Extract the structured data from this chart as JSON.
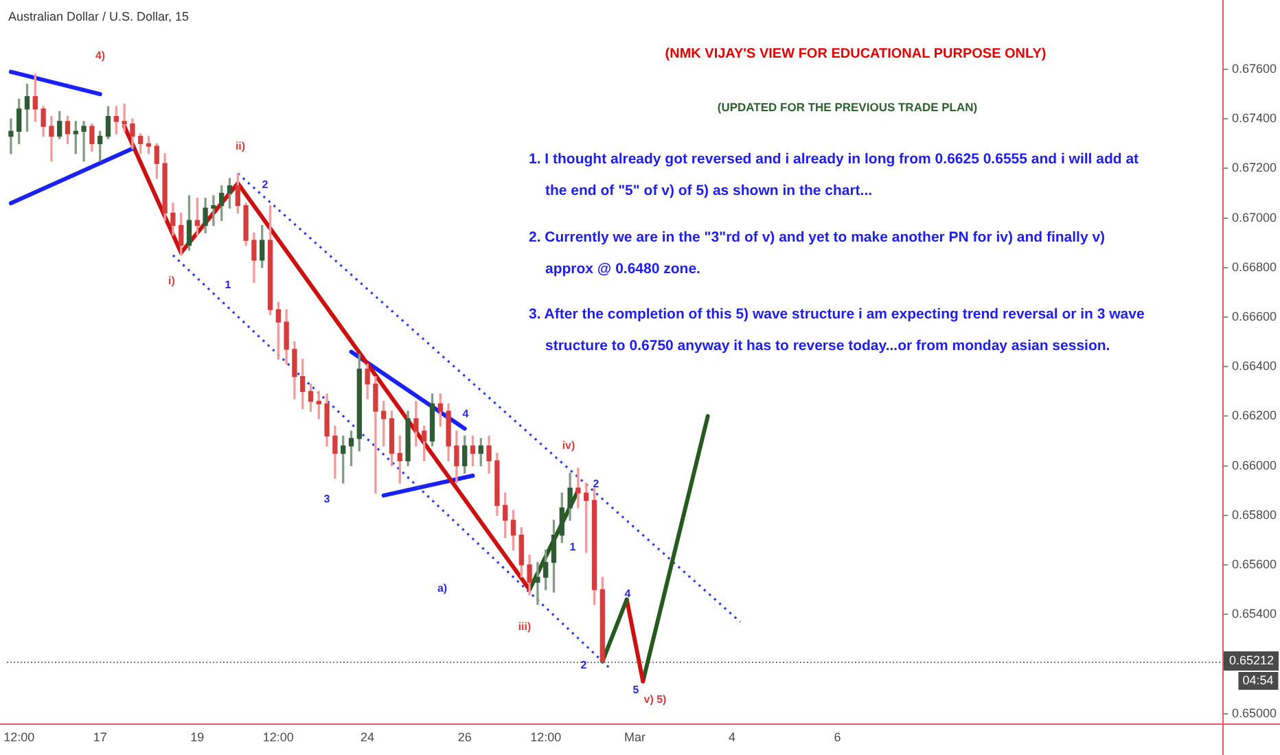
{
  "chart_data": {
    "type": "candlestick",
    "title": "Australian Dollar / U.S. Dollar, 15",
    "categories": [
      null,
      "12:00",
      null,
      null,
      null,
      null,
      null,
      null,
      null,
      null,
      null,
      "17",
      null,
      null,
      null,
      null,
      null,
      null,
      null,
      null,
      null,
      null,
      null,
      "19",
      null,
      null,
      null,
      null,
      null,
      null,
      null,
      null,
      null,
      "12:00",
      null,
      null,
      null,
      null,
      null,
      null,
      null,
      null,
      null,
      null,
      "24",
      null,
      null,
      null,
      null,
      null,
      null,
      null,
      null,
      null,
      null,
      null,
      "26",
      null,
      null,
      null,
      null,
      null,
      null,
      null,
      null,
      null,
      "12:00",
      null,
      null,
      null,
      null,
      null,
      null,
      null,
      null,
      null,
      null,
      "Mar",
      null,
      null,
      null,
      null,
      null,
      null,
      null,
      null,
      null,
      null,
      null,
      "4",
      null,
      null,
      null,
      null,
      null,
      null,
      null,
      null,
      null,
      null,
      null,
      null,
      "6",
      null,
      null,
      null,
      null,
      null,
      null,
      null,
      null,
      null,
      null,
      null,
      null,
      null,
      null,
      null,
      null,
      null,
      null,
      null,
      null,
      null,
      null,
      null,
      null,
      null,
      null,
      null,
      null,
      null,
      null,
      null,
      null,
      null,
      null,
      null,
      null,
      null,
      null,
      null,
      null,
      null,
      null,
      null,
      null,
      null,
      null,
      null
    ],
    "ohlc": [
      [
        0.6733,
        0.674,
        0.6726,
        0.6735
      ],
      [
        0.6735,
        0.6748,
        0.673,
        0.6744
      ],
      [
        0.6744,
        0.6754,
        0.6735,
        0.6749
      ],
      [
        0.6749,
        0.6758,
        0.6739,
        0.6744
      ],
      [
        0.6744,
        0.6745,
        0.6733,
        0.6737
      ],
      [
        0.6737,
        0.6741,
        0.6723,
        0.6733
      ],
      [
        0.6733,
        0.6743,
        0.6732,
        0.6739
      ],
      [
        0.6739,
        0.6741,
        0.673,
        0.6734
      ],
      [
        0.6734,
        0.6739,
        0.6726,
        0.6735
      ],
      [
        0.6735,
        0.6739,
        0.6723,
        0.6737
      ],
      [
        0.6737,
        0.6738,
        0.6727,
        0.673
      ],
      [
        0.673,
        0.6735,
        0.6723,
        0.6733
      ],
      [
        0.6733,
        0.6745,
        0.6732,
        0.6741
      ],
      [
        0.6741,
        0.6745,
        0.6734,
        0.6739
      ],
      [
        0.6739,
        0.6746,
        0.6735,
        0.6738
      ],
      [
        0.6738,
        0.674,
        0.6728,
        0.6733
      ],
      [
        0.6733,
        0.6734,
        0.6726,
        0.673
      ],
      [
        0.673,
        0.6733,
        0.6726,
        0.6729
      ],
      [
        0.6729,
        0.673,
        0.6716,
        0.6722
      ],
      [
        0.6722,
        0.6726,
        0.6699,
        0.6702
      ],
      [
        0.6702,
        0.6706,
        0.6693,
        0.6697
      ],
      [
        0.6697,
        0.6702,
        0.6685,
        0.6689
      ],
      [
        0.6689,
        0.6709,
        0.6687,
        0.6699
      ],
      [
        0.6699,
        0.6708,
        0.6693,
        0.6697
      ],
      [
        0.6697,
        0.6708,
        0.6694,
        0.6704
      ],
      [
        0.6704,
        0.6709,
        0.6697,
        0.6705
      ],
      [
        0.6705,
        0.6713,
        0.6699,
        0.671
      ],
      [
        0.671,
        0.6716,
        0.6704,
        0.6713
      ],
      [
        0.6713,
        0.6718,
        0.6702,
        0.6705
      ],
      [
        0.6705,
        0.6706,
        0.6689,
        0.6691
      ],
      [
        0.6691,
        0.6694,
        0.6674,
        0.6683
      ],
      [
        0.6683,
        0.6697,
        0.668,
        0.6691
      ],
      [
        0.6691,
        0.6705,
        0.6661,
        0.6663
      ],
      [
        0.6663,
        0.6666,
        0.6643,
        0.6658
      ],
      [
        0.6658,
        0.6663,
        0.6641,
        0.6647
      ],
      [
        0.6647,
        0.665,
        0.6627,
        0.6636
      ],
      [
        0.6636,
        0.6643,
        0.6623,
        0.663
      ],
      [
        0.663,
        0.6633,
        0.6622,
        0.6626
      ],
      [
        0.6626,
        0.663,
        0.6619,
        0.6625
      ],
      [
        0.6625,
        0.6629,
        0.6608,
        0.6612
      ],
      [
        0.6612,
        0.6616,
        0.6595,
        0.6605
      ],
      [
        0.6605,
        0.6612,
        0.6593,
        0.6608
      ],
      [
        0.6608,
        0.6614,
        0.66,
        0.6611
      ],
      [
        0.6611,
        0.6645,
        0.6606,
        0.6639
      ],
      [
        0.6639,
        0.6641,
        0.6627,
        0.6633
      ],
      [
        0.6633,
        0.6636,
        0.6589,
        0.6622
      ],
      [
        0.6622,
        0.6626,
        0.6608,
        0.6619
      ],
      [
        0.6619,
        0.6622,
        0.66,
        0.6605
      ],
      [
        0.6605,
        0.6612,
        0.6593,
        0.6602
      ],
      [
        0.6602,
        0.6622,
        0.66,
        0.6619
      ],
      [
        0.6619,
        0.6626,
        0.6608,
        0.6614
      ],
      [
        0.6614,
        0.6616,
        0.6602,
        0.661
      ],
      [
        0.661,
        0.6629,
        0.6608,
        0.6625
      ],
      [
        0.6625,
        0.6629,
        0.6616,
        0.6622
      ],
      [
        0.6622,
        0.6625,
        0.6602,
        0.6608
      ],
      [
        0.6608,
        0.6614,
        0.6593,
        0.66
      ],
      [
        0.66,
        0.6612,
        0.6597,
        0.6608
      ],
      [
        0.6608,
        0.6612,
        0.66,
        0.6605
      ],
      [
        0.6605,
        0.6611,
        0.66,
        0.6608
      ],
      [
        0.6608,
        0.6612,
        0.6597,
        0.6602
      ],
      [
        0.6602,
        0.6605,
        0.658,
        0.6584
      ],
      [
        0.6584,
        0.6589,
        0.6571,
        0.6578
      ],
      [
        0.6578,
        0.6582,
        0.6566,
        0.6572
      ],
      [
        0.6572,
        0.6575,
        0.6555,
        0.656
      ],
      [
        0.656,
        0.6564,
        0.6548,
        0.6553
      ],
      [
        0.6553,
        0.6561,
        0.6544,
        0.6555
      ],
      [
        0.6555,
        0.6566,
        0.655,
        0.6561
      ],
      [
        0.6561,
        0.6578,
        0.6549,
        0.6572
      ],
      [
        0.6572,
        0.6589,
        0.6569,
        0.6583
      ],
      [
        0.6583,
        0.6597,
        0.6578,
        0.6591
      ],
      [
        0.6591,
        0.6599,
        0.6583,
        0.6589
      ],
      [
        0.6589,
        0.6593,
        0.6565,
        0.6586
      ],
      [
        0.6586,
        0.6591,
        0.6544,
        0.655
      ],
      [
        0.655,
        0.6555,
        0.6521,
        0.65212
      ],
      null,
      null,
      null,
      null,
      null,
      null,
      null,
      null,
      null,
      null,
      null,
      null,
      null,
      null,
      null,
      null,
      null,
      null,
      null,
      null,
      null,
      null,
      null,
      null,
      null,
      null,
      null,
      null,
      null,
      null,
      null,
      null,
      null,
      null,
      null,
      null,
      null,
      null,
      null,
      null,
      null,
      null,
      null,
      null,
      null,
      null,
      null,
      null,
      null,
      null,
      null,
      null,
      null,
      null,
      null,
      null,
      null,
      null,
      null,
      null,
      null,
      null,
      null,
      null,
      null,
      null,
      null,
      null,
      null,
      null,
      null,
      null,
      null,
      null,
      null,
      null
    ],
    "series": [
      {
        "type": "line",
        "color": "#1a22f2",
        "values": [
          0.6759,
          null,
          null,
          null,
          null,
          null,
          null,
          null,
          null,
          null,
          null,
          0.675,
          null,
          null,
          null,
          null,
          null,
          null,
          null,
          null,
          null,
          null,
          null,
          null,
          null,
          null,
          null,
          null,
          null,
          null,
          null,
          null,
          null,
          null,
          null,
          null,
          null,
          null,
          null,
          null,
          null,
          null,
          null,
          null,
          null,
          null,
          null,
          null,
          null,
          null,
          null,
          null,
          null,
          null,
          null,
          null,
          null,
          null,
          null,
          null,
          null,
          null,
          null,
          null,
          null,
          null,
          null,
          null,
          null,
          null,
          null,
          null,
          null,
          null,
          null,
          null,
          null,
          null,
          null,
          null,
          null,
          null,
          null,
          null,
          null,
          null,
          null,
          null,
          null,
          null,
          null,
          null,
          null,
          null,
          null,
          null,
          null,
          null,
          null,
          null,
          null,
          null,
          null,
          null,
          null,
          null,
          null,
          null,
          null,
          null,
          null,
          null,
          null,
          null,
          null,
          null,
          null,
          null,
          null,
          null,
          null,
          null,
          null,
          null,
          null,
          null,
          null,
          null,
          null,
          null,
          null,
          null,
          null,
          null,
          null,
          null,
          null,
          null,
          null,
          null,
          null,
          null,
          null,
          null,
          null,
          null,
          null,
          null,
          null,
          null
        ]
      },
      {
        "type": "line",
        "color": "#1a22f2",
        "values": [
          0.6706,
          null,
          null,
          null,
          null,
          null,
          null,
          null,
          null,
          null,
          null,
          null,
          null,
          null,
          null,
          0.6728,
          null,
          null,
          null,
          null,
          null,
          null,
          null,
          null,
          null,
          null,
          null,
          null,
          null,
          null,
          null,
          null,
          null,
          null,
          null,
          null,
          null,
          null,
          null,
          null,
          null,
          null,
          null,
          null,
          null,
          null,
          null,
          null,
          null,
          null,
          null,
          null,
          null,
          null,
          null,
          null,
          null,
          null,
          null,
          null,
          null,
          null,
          null,
          null,
          null,
          null,
          null,
          null,
          null,
          null,
          null,
          null,
          null,
          null,
          null,
          null,
          null,
          null,
          null,
          null,
          null,
          null,
          null,
          null,
          null,
          null,
          null,
          null,
          null,
          null,
          null,
          null,
          null,
          null,
          null,
          null,
          null,
          null,
          null,
          null,
          null,
          null,
          null,
          null,
          null,
          null,
          null,
          null,
          null,
          null,
          null,
          null,
          null,
          null,
          null,
          null,
          null,
          null,
          null,
          null,
          null,
          null,
          null,
          null,
          null,
          null,
          null,
          null,
          null,
          null,
          null,
          null,
          null,
          null,
          null,
          null,
          null,
          null,
          null,
          null,
          null,
          null,
          null,
          null,
          null,
          null,
          null,
          null,
          null,
          null
        ]
      },
      {
        "type": "line",
        "color": "#cc1111",
        "values": [
          null,
          null,
          null,
          null,
          null,
          null,
          null,
          null,
          null,
          null,
          null,
          null,
          null,
          null,
          0.6737,
          null,
          null,
          null,
          null,
          null,
          null,
          0.6686,
          null,
          null,
          null,
          null,
          null,
          null,
          0.6714,
          null,
          null,
          null,
          null,
          null,
          null,
          null,
          null,
          null,
          null,
          null,
          null,
          null,
          null,
          null,
          null,
          null,
          null,
          null,
          null,
          null,
          null,
          null,
          null,
          null,
          null,
          null,
          null,
          null,
          null,
          null,
          null,
          null,
          null,
          null,
          0.655,
          null,
          null,
          null,
          null,
          null,
          null,
          null,
          null,
          null,
          null,
          null,
          null,
          null,
          null,
          null,
          null,
          null,
          null,
          null,
          null,
          null,
          null,
          null,
          null,
          null,
          null,
          null,
          null,
          null,
          null,
          null,
          null,
          null,
          null,
          null,
          null,
          null,
          null,
          null,
          null,
          null,
          null,
          null,
          null,
          null,
          null,
          null,
          null,
          null,
          null,
          null,
          null,
          null,
          null,
          null,
          null,
          null,
          null,
          null,
          null,
          null,
          null,
          null,
          null,
          null,
          null,
          null,
          null,
          null,
          null,
          null,
          null,
          null,
          null,
          null,
          null,
          null,
          null,
          null,
          null,
          null,
          null,
          null,
          null,
          null
        ]
      },
      {
        "type": "line",
        "color": "#275a1f",
        "values": [
          null,
          null,
          null,
          null,
          null,
          null,
          null,
          null,
          null,
          null,
          null,
          null,
          null,
          null,
          null,
          null,
          null,
          null,
          null,
          null,
          null,
          null,
          null,
          null,
          null,
          null,
          null,
          null,
          null,
          null,
          null,
          null,
          null,
          null,
          null,
          null,
          null,
          null,
          null,
          null,
          null,
          null,
          null,
          null,
          null,
          null,
          null,
          null,
          null,
          null,
          null,
          null,
          null,
          null,
          null,
          null,
          null,
          null,
          null,
          null,
          null,
          null,
          null,
          null,
          0.655,
          null,
          null,
          null,
          null,
          null,
          0.659,
          null,
          null,
          null,
          null,
          null,
          null,
          null,
          null,
          null,
          null,
          null,
          null,
          null,
          null,
          null,
          null,
          null,
          null,
          null,
          null,
          null,
          null,
          null,
          null,
          null,
          null,
          null,
          null,
          null,
          null,
          null,
          null,
          null,
          null,
          null,
          null,
          null,
          null,
          null,
          null,
          null,
          null,
          null,
          null,
          null,
          null,
          null,
          null,
          null,
          null,
          null,
          null,
          null,
          null,
          null,
          null,
          null,
          null,
          null,
          null,
          null,
          null,
          null,
          null,
          null,
          null,
          null,
          null,
          null,
          null,
          null,
          null,
          null,
          null,
          null,
          null,
          null,
          null,
          null
        ]
      },
      {
        "type": "line",
        "color": "#275a1f",
        "values": [
          null,
          null,
          null,
          null,
          null,
          null,
          null,
          null,
          null,
          null,
          null,
          null,
          null,
          null,
          null,
          null,
          null,
          null,
          null,
          null,
          null,
          null,
          null,
          null,
          null,
          null,
          null,
          null,
          null,
          null,
          null,
          null,
          null,
          null,
          null,
          null,
          null,
          null,
          null,
          null,
          null,
          null,
          null,
          null,
          null,
          null,
          null,
          null,
          null,
          null,
          null,
          null,
          null,
          null,
          null,
          null,
          null,
          null,
          null,
          null,
          null,
          null,
          null,
          null,
          null,
          null,
          null,
          null,
          null,
          null,
          null,
          null,
          null,
          0.6521,
          null,
          null,
          0.6546,
          null,
          null,
          null,
          null,
          null,
          null,
          null,
          null,
          null,
          null,
          null,
          null,
          null,
          null,
          null,
          null,
          null,
          null,
          null,
          null,
          null,
          null,
          null,
          null,
          null,
          null,
          null,
          null,
          null,
          null,
          null,
          null,
          null,
          null,
          null,
          null,
          null,
          null,
          null,
          null,
          null,
          null,
          null,
          null,
          null,
          null,
          null,
          null,
          null,
          null,
          null,
          null,
          null,
          null,
          null,
          null,
          null,
          null,
          null,
          null,
          null,
          null,
          null,
          null,
          null,
          null,
          null,
          null,
          null,
          null,
          null,
          null,
          null
        ]
      },
      {
        "type": "line",
        "color": "#cc1111",
        "values": [
          null,
          null,
          null,
          null,
          null,
          null,
          null,
          null,
          null,
          null,
          null,
          null,
          null,
          null,
          null,
          null,
          null,
          null,
          null,
          null,
          null,
          null,
          null,
          null,
          null,
          null,
          null,
          null,
          null,
          null,
          null,
          null,
          null,
          null,
          null,
          null,
          null,
          null,
          null,
          null,
          null,
          null,
          null,
          null,
          null,
          null,
          null,
          null,
          null,
          null,
          null,
          null,
          null,
          null,
          null,
          null,
          null,
          null,
          null,
          null,
          null,
          null,
          null,
          null,
          null,
          null,
          null,
          null,
          null,
          null,
          null,
          null,
          null,
          null,
          null,
          null,
          0.6546,
          null,
          0.6513,
          null,
          null,
          null,
          null,
          null,
          null,
          null,
          null,
          null,
          null,
          null,
          null,
          null,
          null,
          null,
          null,
          null,
          null,
          null,
          null,
          null,
          null,
          null,
          null,
          null,
          null,
          null,
          null,
          null,
          null,
          null,
          null,
          null,
          null,
          null,
          null,
          null,
          null,
          null,
          null,
          null,
          null,
          null,
          null,
          null,
          null,
          null,
          null,
          null,
          null,
          null,
          null,
          null,
          null,
          null,
          null,
          null,
          null,
          null,
          null,
          null,
          null,
          null,
          null,
          null,
          null,
          null,
          null,
          null,
          null,
          null
        ]
      },
      {
        "type": "line",
        "color": "#275a1f",
        "values": [
          null,
          null,
          null,
          null,
          null,
          null,
          null,
          null,
          null,
          null,
          null,
          null,
          null,
          null,
          null,
          null,
          null,
          null,
          null,
          null,
          null,
          null,
          null,
          null,
          null,
          null,
          null,
          null,
          null,
          null,
          null,
          null,
          null,
          null,
          null,
          null,
          null,
          null,
          null,
          null,
          null,
          null,
          null,
          null,
          null,
          null,
          null,
          null,
          null,
          null,
          null,
          null,
          null,
          null,
          null,
          null,
          null,
          null,
          null,
          null,
          null,
          null,
          null,
          null,
          null,
          null,
          null,
          null,
          null,
          null,
          null,
          null,
          null,
          null,
          null,
          null,
          null,
          null,
          0.6513,
          null,
          null,
          null,
          null,
          null,
          null,
          null,
          0.662,
          null,
          null,
          null,
          null,
          null,
          null,
          null,
          null,
          null,
          null,
          null,
          null,
          null,
          null,
          null,
          null,
          null,
          null,
          null,
          null,
          null,
          null,
          null,
          null,
          null,
          null,
          null,
          null,
          null,
          null,
          null,
          null,
          null,
          null,
          null,
          null,
          null,
          null,
          null,
          null,
          null,
          null,
          null,
          null,
          null,
          null,
          null,
          null,
          null,
          null,
          null,
          null,
          null,
          null,
          null,
          null,
          null,
          null,
          null,
          null,
          null,
          null,
          null
        ]
      },
      {
        "type": "line",
        "color": "#2a3cf0",
        "line_style": "dotted",
        "values": [
          null,
          null,
          null,
          null,
          null,
          null,
          null,
          null,
          null,
          null,
          null,
          null,
          null,
          null,
          null,
          null,
          null,
          null,
          null,
          null,
          null,
          null,
          null,
          null,
          null,
          null,
          null,
          null,
          0.6718,
          null,
          null,
          null,
          null,
          null,
          null,
          null,
          null,
          null,
          null,
          null,
          null,
          null,
          null,
          null,
          null,
          null,
          null,
          null,
          null,
          null,
          null,
          null,
          null,
          null,
          null,
          null,
          null,
          null,
          null,
          null,
          null,
          null,
          null,
          null,
          null,
          null,
          null,
          null,
          null,
          null,
          null,
          null,
          null,
          null,
          null,
          null,
          null,
          null,
          null,
          null,
          null,
          null,
          null,
          null,
          null,
          null,
          null,
          null,
          null,
          null,
          0.6537,
          null,
          null,
          null,
          null,
          null,
          null,
          null,
          null,
          null,
          null,
          null,
          null,
          null,
          null,
          null,
          null,
          null,
          null,
          null,
          null,
          null,
          null,
          null,
          null,
          null,
          null,
          null,
          null,
          null,
          null,
          null,
          null,
          null,
          null,
          null,
          null,
          null,
          null,
          null,
          null,
          null,
          null,
          null,
          null,
          null,
          null,
          null,
          null,
          null,
          null,
          null,
          null,
          null,
          null,
          null,
          null,
          null,
          null,
          null
        ]
      },
      {
        "type": "line",
        "color": "#2a3cf0",
        "line_style": "dotted",
        "values": [
          null,
          null,
          null,
          null,
          null,
          null,
          null,
          null,
          null,
          null,
          null,
          null,
          null,
          null,
          null,
          null,
          null,
          null,
          null,
          null,
          0.6685,
          null,
          null,
          null,
          null,
          null,
          null,
          null,
          null,
          null,
          null,
          null,
          null,
          null,
          null,
          null,
          null,
          null,
          null,
          null,
          null,
          null,
          null,
          null,
          null,
          null,
          null,
          null,
          null,
          null,
          null,
          null,
          null,
          null,
          null,
          null,
          null,
          null,
          null,
          null,
          null,
          null,
          null,
          null,
          null,
          null,
          null,
          null,
          null,
          null,
          null,
          null,
          null,
          null,
          0.6518,
          null,
          null,
          null,
          null,
          null,
          null,
          null,
          null,
          null,
          null,
          null,
          null,
          null,
          null,
          null,
          null,
          null,
          null,
          null,
          null,
          null,
          null,
          null,
          null,
          null,
          null,
          null,
          null,
          null,
          null,
          null,
          null,
          null,
          null,
          null,
          null,
          null,
          null,
          null,
          null,
          null,
          null,
          null,
          null,
          null,
          null,
          null,
          null,
          null,
          null,
          null,
          null,
          null,
          null,
          null,
          null,
          null,
          null,
          null,
          null,
          null,
          null,
          null,
          null,
          null,
          null,
          null,
          null,
          null,
          null,
          null,
          null,
          null,
          null,
          null
        ]
      },
      {
        "type": "line",
        "color": "#1a22f2",
        "values": [
          null,
          null,
          null,
          null,
          null,
          null,
          null,
          null,
          null,
          null,
          null,
          null,
          null,
          null,
          null,
          null,
          null,
          null,
          null,
          null,
          null,
          null,
          null,
          null,
          null,
          null,
          null,
          null,
          null,
          null,
          null,
          null,
          null,
          null,
          null,
          null,
          null,
          null,
          null,
          null,
          null,
          null,
          0.6646,
          null,
          null,
          null,
          null,
          null,
          null,
          null,
          null,
          null,
          null,
          null,
          null,
          null,
          0.6615,
          null,
          null,
          null,
          null,
          null,
          null,
          null,
          null,
          null,
          null,
          null,
          null,
          null,
          null,
          null,
          null,
          null,
          null,
          null,
          null,
          null,
          null,
          null,
          null,
          null,
          null,
          null,
          null,
          null,
          null,
          null,
          null,
          null,
          null,
          null,
          null,
          null,
          null,
          null,
          null,
          null,
          null,
          null,
          null,
          null,
          null,
          null,
          null,
          null,
          null,
          null,
          null,
          null,
          null,
          null,
          null,
          null,
          null,
          null,
          null,
          null,
          null,
          null,
          null,
          null,
          null,
          null,
          null,
          null,
          null,
          null,
          null,
          null,
          null,
          null,
          null,
          null,
          null,
          null,
          null,
          null,
          null,
          null,
          null,
          null,
          null,
          null,
          null,
          null,
          null,
          null,
          null,
          null
        ]
      },
      {
        "type": "line",
        "color": "#1a22f2",
        "values": [
          null,
          null,
          null,
          null,
          null,
          null,
          null,
          null,
          null,
          null,
          null,
          null,
          null,
          null,
          null,
          null,
          null,
          null,
          null,
          null,
          null,
          null,
          null,
          null,
          null,
          null,
          null,
          null,
          null,
          null,
          null,
          null,
          null,
          null,
          null,
          null,
          null,
          null,
          null,
          null,
          null,
          null,
          null,
          null,
          null,
          null,
          0.6588,
          null,
          null,
          null,
          null,
          null,
          null,
          null,
          null,
          null,
          null,
          0.6596,
          null,
          null,
          null,
          null,
          null,
          null,
          null,
          null,
          null,
          null,
          null,
          null,
          null,
          null,
          null,
          null,
          null,
          null,
          null,
          null,
          null,
          null,
          null,
          null,
          null,
          null,
          null,
          null,
          null,
          null,
          null,
          null,
          null,
          null,
          null,
          null,
          null,
          null,
          null,
          null,
          null,
          null,
          null,
          null,
          null,
          null,
          null,
          null,
          null,
          null,
          null,
          null,
          null,
          null,
          null,
          null,
          null,
          null,
          null,
          null,
          null,
          null,
          null,
          null,
          null,
          null,
          null,
          null,
          null,
          null,
          null,
          null,
          null,
          null,
          null,
          null,
          null,
          null,
          null,
          null,
          null,
          null,
          null,
          null,
          null,
          null,
          null,
          null,
          null,
          null,
          null,
          null
        ]
      }
    ],
    "ylim": [
      0.6496,
      0.6788
    ],
    "yticks": [
      {
        "value": 0.65,
        "label": "0.65000"
      },
      {
        "value": 0.654,
        "label": "0.65400"
      },
      {
        "value": 0.656,
        "label": "0.65600"
      },
      {
        "value": 0.658,
        "label": "0.65800"
      },
      {
        "value": 0.66,
        "label": "0.66000"
      },
      {
        "value": 0.662,
        "label": "0.66200"
      },
      {
        "value": 0.664,
        "label": "0.66400"
      },
      {
        "value": 0.666,
        "label": "0.66600"
      },
      {
        "value": 0.668,
        "label": "0.66800"
      },
      {
        "value": 0.67,
        "label": "0.67000"
      },
      {
        "value": 0.672,
        "label": "0.67200"
      },
      {
        "value": 0.674,
        "label": "0.67400"
      },
      {
        "value": 0.676,
        "label": "0.67600"
      }
    ],
    "ref_lines": [
      {
        "axis": "y",
        "value": 0.65212,
        "label": "0.65212",
        "color": "#7a7a7a",
        "line_style": "dotted"
      }
    ],
    "annotations": [
      "(NMK VIJAY'S VIEW FOR EDUCATIONAL PURPOSE ONLY)",
      "(UPDATED FOR THE PREVIOUS TRADE PLAN)",
      "1. I thought already got reversed and i already in long from 0.6625 0.6555 and i will add at the end of \"5\" of v) of 5) as shown in the chart...",
      "2. Currently we are in the \"3\"rd of v) and yet to make another PN for iv) and finally v) approx @ 0.6480 zone.",
      "3. After the completion of this 5) wave structure i am expecting trend reversal or in 3 wave structure to 0.6750 anyway it has to reverse today...or from monday asian session.",
      "4)",
      "ii)",
      "2",
      "i)",
      "1",
      "3",
      "4",
      "a)",
      "iv)",
      "2",
      "1",
      "iii)",
      "4",
      "2",
      "5",
      "v) 5)",
      "04:54"
    ]
  }
}
